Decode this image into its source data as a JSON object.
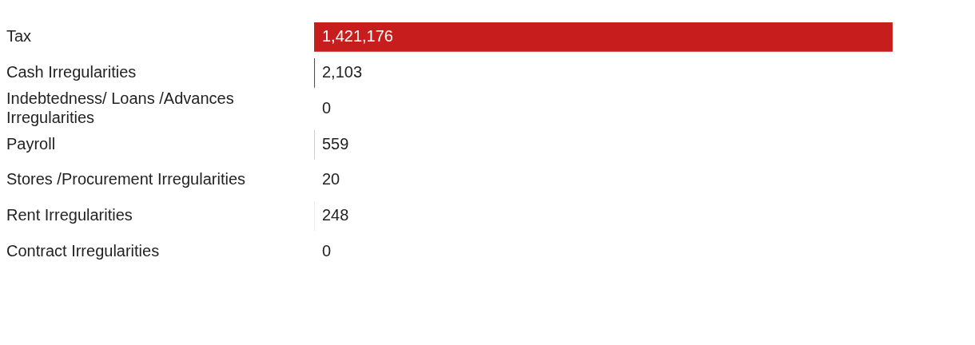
{
  "chart_data": {
    "type": "bar",
    "orientation": "horizontal",
    "categories": [
      "Tax",
      "Cash Irregularities",
      "Indebtedness/ Loans /Advances Irregularities",
      "Payroll",
      "Stores /Procurement Irregularities",
      "Rent Irregularities",
      "Contract Irregularities"
    ],
    "values": [
      1421176,
      2103,
      0,
      559,
      20,
      248,
      0
    ],
    "value_labels": [
      "1,421,176",
      "2,103",
      "0",
      "559",
      "20",
      "248",
      "0"
    ],
    "color": "#c71e1d",
    "grid": false,
    "legend": false
  }
}
